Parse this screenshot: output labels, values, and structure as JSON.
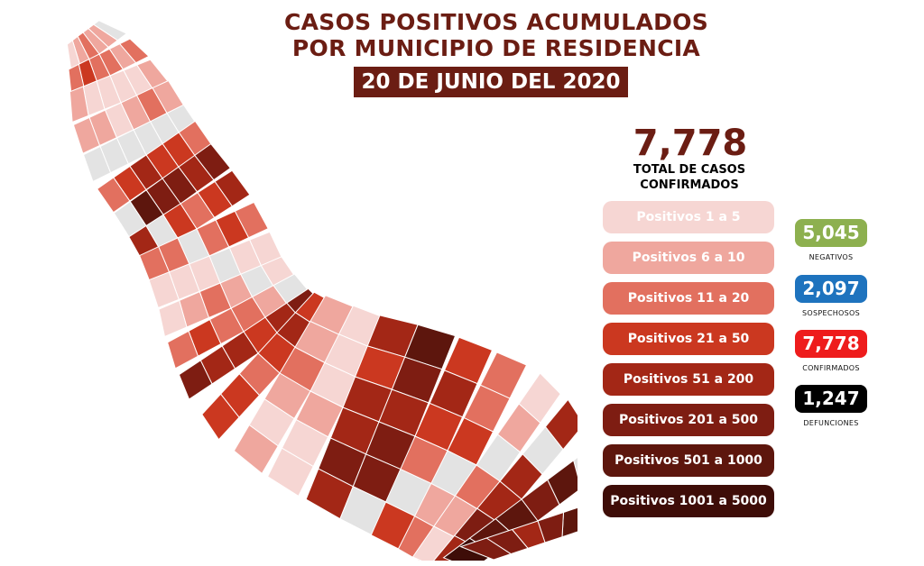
{
  "header": {
    "title_line1": "CASOS POSITIVOS ACUMULADOS",
    "title_line2": "POR MUNICIPIO DE RESIDENCIA",
    "date": "20 DE JUNIO DEL 2020"
  },
  "total": {
    "value": "7,778",
    "label_line1": "TOTAL DE CASOS",
    "label_line2": "CONFIRMADOS"
  },
  "legend": [
    {
      "label": "Positivos 1 a 5",
      "color": "#f6d6d3"
    },
    {
      "label": "Positivos 6 a 10",
      "color": "#efa79e"
    },
    {
      "label": "Positivos 11 a 20",
      "color": "#e2705f"
    },
    {
      "label": "Positivos 21 a 50",
      "color": "#cb3820"
    },
    {
      "label": "Positivos 51 a 200",
      "color": "#a32716"
    },
    {
      "label": "Positivos 201 a 500",
      "color": "#7e1d12"
    },
    {
      "label": "Positivos 501 a 1000",
      "color": "#5d160d"
    },
    {
      "label": "Positivos 1001 a 5000",
      "color": "#3e0d08"
    }
  ],
  "stats": [
    {
      "value": "5,045",
      "label": "NEGATIVOS",
      "color": "#8db04f"
    },
    {
      "value": "2,097",
      "label": "SOSPECHOSOS",
      "color": "#1e73be"
    },
    {
      "value": "7,778",
      "label": "CONFIRMADOS",
      "color": "#ee1c1c"
    },
    {
      "value": "1,247",
      "label": "DEFUNCIONES",
      "color": "#000000"
    }
  ],
  "map": {
    "no_data_color": "#e3e3e3",
    "border_color": "#ffffff"
  }
}
